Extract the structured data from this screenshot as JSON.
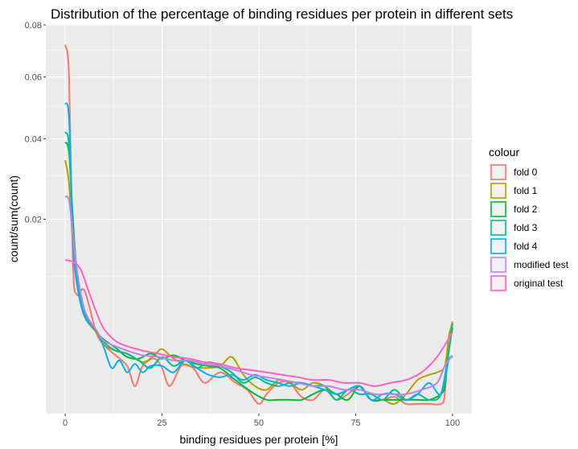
{
  "chart_data": {
    "type": "line",
    "title": "Distribution of the percentage of binding residues per protein in different sets",
    "xlabel": "binding residues per protein [%]",
    "ylabel": "count/sum(count)",
    "y_scale": "sqrt",
    "xlim": [
      -5,
      105
    ],
    "ylim": [
      0,
      0.08
    ],
    "x_ticks": [
      0,
      25,
      50,
      75,
      100
    ],
    "x_tick_labels": [
      "0",
      "25",
      "50",
      "75",
      "100"
    ],
    "y_ticks": [
      0.02,
      0.04,
      0.06,
      0.08
    ],
    "y_tick_labels": [
      "0.02",
      "0.04",
      "0.06",
      "0.08"
    ],
    "grid": true,
    "background": "#ebebeb",
    "legend_title": "colour",
    "legend_position": "right",
    "series": [
      {
        "name": "fold 0",
        "color": "#F8766D",
        "x": [
          0,
          1,
          2,
          3,
          5,
          8,
          10,
          13,
          16,
          18,
          20,
          23,
          25,
          27,
          30,
          33,
          36,
          40,
          44,
          47,
          50,
          52,
          55,
          58,
          61,
          64,
          67,
          70,
          73,
          76,
          79,
          82,
          85,
          88,
          91,
          94,
          97,
          98,
          99,
          100
        ],
        "y": [
          0.072,
          0.06,
          0.012,
          0.0075,
          0.008,
          0.0035,
          0.0025,
          0.0018,
          0.0012,
          0.0004,
          0.0012,
          0.0016,
          0.0011,
          0.0004,
          0.0012,
          0.0011,
          0.0005,
          0.0009,
          0.0005,
          0.0003,
          5e-05,
          0.0002,
          0.0005,
          0.0005,
          0.00015,
          0.0001,
          0.0003,
          0.0001,
          0.0002,
          0.0004,
          0.0001,
          0.0001,
          0.00015,
          5e-05,
          5e-05,
          5e-05,
          5e-05,
          0.0002,
          0.003,
          0.004
        ]
      },
      {
        "name": "fold 1",
        "color": "#B79F00",
        "x": [
          0,
          1,
          2,
          3,
          5,
          8,
          10,
          13,
          16,
          20,
          23,
          25,
          28,
          32,
          36,
          40,
          43,
          46,
          49,
          52,
          55,
          58,
          61,
          64,
          67,
          70,
          73,
          76,
          79,
          82,
          85,
          88,
          91,
          94,
          96,
          98,
          99,
          100
        ],
        "y": [
          0.034,
          0.028,
          0.015,
          0.009,
          0.005,
          0.0035,
          0.0025,
          0.0021,
          0.0019,
          0.0014,
          0.0018,
          0.0022,
          0.0016,
          0.0012,
          0.0011,
          0.0012,
          0.0017,
          0.0008,
          0.0004,
          0.0003,
          0.0006,
          0.0005,
          0.0003,
          0.0005,
          0.0004,
          0.0002,
          0.0003,
          0.0004,
          0.0001,
          0.0001,
          5e-05,
          0.0002,
          0.0006,
          0.0008,
          0.0009,
          0.0012,
          0.003,
          0.0045
        ]
      },
      {
        "name": "fold 2",
        "color": "#00BA38",
        "x": [
          0,
          1,
          2,
          3,
          5,
          8,
          10,
          13,
          16,
          19,
          22,
          25,
          28,
          31,
          34,
          37,
          40,
          43,
          46,
          49,
          52,
          55,
          58,
          61,
          64,
          67,
          70,
          73,
          76,
          79,
          82,
          85,
          88,
          91,
          94,
          97,
          98,
          99,
          100
        ],
        "y": [
          0.039,
          0.036,
          0.02,
          0.011,
          0.0055,
          0.0036,
          0.0029,
          0.0023,
          0.0017,
          0.0016,
          0.0019,
          0.0016,
          0.0018,
          0.0015,
          0.0013,
          0.0012,
          0.0011,
          0.0007,
          0.0004,
          0.0002,
          0.0001,
          0.0001,
          0.0001,
          0.0001,
          0.0002,
          0.0003,
          0.0002,
          0.0001,
          0.0004,
          0.0001,
          0.0001,
          0.0001,
          0.0001,
          0.0001,
          0.0001,
          0.0002,
          0.0004,
          0.002,
          0.0039
        ]
      },
      {
        "name": "fold 3",
        "color": "#00C08B",
        "x": [
          0,
          1,
          2,
          3,
          5,
          8,
          10,
          13,
          16,
          19,
          22,
          25,
          28,
          31,
          34,
          37,
          40,
          43,
          46,
          49,
          52,
          55,
          58,
          61,
          64,
          67,
          70,
          73,
          76,
          79,
          82,
          85,
          88,
          91,
          94,
          97,
          99,
          100
        ],
        "y": [
          0.042,
          0.038,
          0.017,
          0.01,
          0.0052,
          0.0037,
          0.0027,
          0.0021,
          0.0019,
          0.0015,
          0.0011,
          0.0017,
          0.0012,
          0.0015,
          0.0011,
          0.0014,
          0.0012,
          0.0009,
          0.0005,
          0.0007,
          0.0005,
          0.0004,
          0.0005,
          0.0005,
          0.0004,
          0.0004,
          0.0001,
          0.0003,
          0.0002,
          0.0002,
          0.0001,
          0.0003,
          0.0001,
          0.0002,
          0.0001,
          0.0002,
          0.002,
          0.0043
        ]
      },
      {
        "name": "fold 4",
        "color": "#00B4F0",
        "x": [
          0,
          1,
          2,
          3,
          5,
          8,
          10,
          12,
          14,
          16,
          18,
          20,
          22,
          25,
          28,
          31,
          34,
          37,
          40,
          43,
          46,
          49,
          52,
          55,
          58,
          61,
          64,
          67,
          70,
          73,
          76,
          79,
          82,
          85,
          88,
          91,
          94,
          97,
          99,
          100
        ],
        "y": [
          0.051,
          0.046,
          0.016,
          0.009,
          0.005,
          0.0037,
          0.0023,
          0.0011,
          0.0015,
          0.0009,
          0.0013,
          0.0009,
          0.0012,
          0.0012,
          0.0009,
          0.0015,
          0.0011,
          0.0008,
          0.0007,
          0.0008,
          0.0006,
          0.0008,
          0.0006,
          0.0005,
          0.0004,
          0.0005,
          0.0004,
          0.0003,
          0.0002,
          0.0003,
          0.0004,
          0.0001,
          0.0002,
          0.0002,
          0.0001,
          0.0002,
          0.0005,
          0.0002,
          0.0015,
          0.0017
        ]
      },
      {
        "name": "modified test",
        "color": "#C77CFF",
        "x": [
          0,
          1,
          2,
          3,
          5,
          8,
          10,
          13,
          16,
          20,
          24,
          28,
          32,
          36,
          40,
          44,
          48,
          52,
          56,
          60,
          64,
          68,
          72,
          76,
          80,
          84,
          88,
          92,
          96,
          98,
          100
        ],
        "y": [
          0.025,
          0.024,
          0.017,
          0.011,
          0.0057,
          0.0037,
          0.0028,
          0.0024,
          0.0021,
          0.0018,
          0.0017,
          0.0015,
          0.0015,
          0.0013,
          0.0012,
          0.001,
          0.0008,
          0.0007,
          0.0006,
          0.0005,
          0.0004,
          0.0004,
          0.0003,
          0.0003,
          0.0002,
          0.0002,
          0.0002,
          0.0003,
          0.0005,
          0.0012,
          0.0018
        ]
      },
      {
        "name": "original test",
        "color": "#FF61C3",
        "x": [
          0,
          2,
          4,
          6,
          8,
          10,
          13,
          16,
          20,
          24,
          28,
          32,
          36,
          40,
          44,
          48,
          52,
          56,
          60,
          64,
          68,
          72,
          76,
          80,
          84,
          88,
          92,
          96,
          100
        ],
        "y": [
          0.0125,
          0.0122,
          0.011,
          0.008,
          0.0055,
          0.0038,
          0.0028,
          0.0024,
          0.0021,
          0.0019,
          0.0017,
          0.0016,
          0.0014,
          0.0013,
          0.0011,
          0.001,
          0.0009,
          0.0008,
          0.0007,
          0.0006,
          0.0006,
          0.0005,
          0.0005,
          0.0004,
          0.0005,
          0.0006,
          0.0009,
          0.0017,
          0.0035
        ]
      }
    ]
  }
}
